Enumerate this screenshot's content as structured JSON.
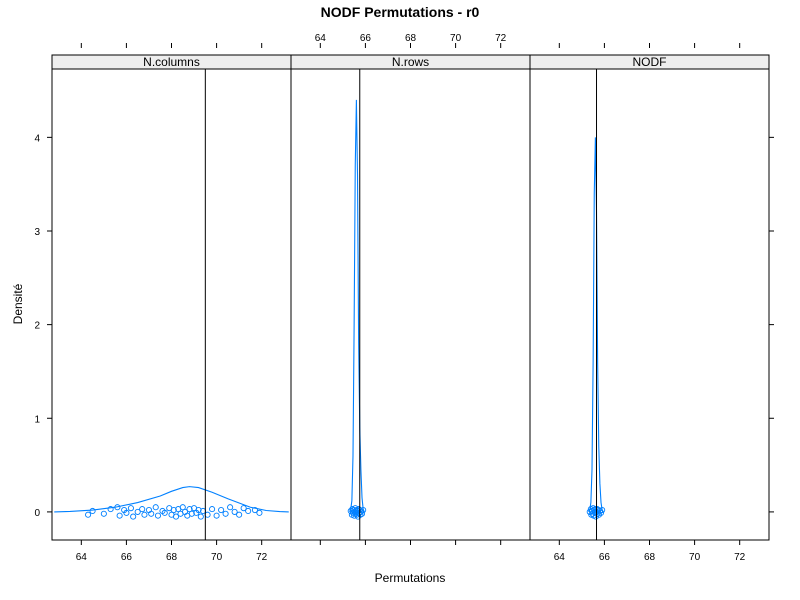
{
  "chart_data": {
    "type": "line",
    "title": "NODF Permutations - r0",
    "xlabel": "Permutations",
    "ylabel": "Densité",
    "xlim": [
      62.7,
      73.3
    ],
    "ylim": [
      -0.3,
      4.73
    ],
    "x_ticks": [
      64,
      66,
      68,
      70,
      72
    ],
    "y_ticks": [
      0,
      1,
      2,
      3,
      4
    ],
    "grid": false,
    "series_color": "#0080ff",
    "observed_line_color": "#000000",
    "strip_color": "#eeeeee",
    "panels": [
      {
        "name": "N.columns",
        "observed": 69.5,
        "density": {
          "x": [
            62.8,
            63.5,
            64.5,
            65.5,
            66.5,
            67.5,
            68.0,
            68.5,
            68.8,
            69.2,
            69.8,
            70.5,
            71.5,
            72.2,
            72.8,
            73.2
          ],
          "y": [
            0.0,
            0.005,
            0.02,
            0.05,
            0.1,
            0.17,
            0.22,
            0.26,
            0.27,
            0.26,
            0.21,
            0.14,
            0.05,
            0.015,
            0.004,
            0.0
          ]
        },
        "points": [
          {
            "x": 64.3,
            "y": -0.03
          },
          {
            "x": 64.5,
            "y": 0.01
          },
          {
            "x": 65.0,
            "y": -0.02
          },
          {
            "x": 65.3,
            "y": 0.03
          },
          {
            "x": 65.6,
            "y": 0.05
          },
          {
            "x": 65.7,
            "y": -0.04
          },
          {
            "x": 65.9,
            "y": 0.02
          },
          {
            "x": 66.0,
            "y": -0.01
          },
          {
            "x": 66.2,
            "y": 0.04
          },
          {
            "x": 66.3,
            "y": -0.05
          },
          {
            "x": 66.5,
            "y": 0.0
          },
          {
            "x": 66.7,
            "y": 0.03
          },
          {
            "x": 66.8,
            "y": -0.03
          },
          {
            "x": 67.0,
            "y": 0.02
          },
          {
            "x": 67.1,
            "y": -0.02
          },
          {
            "x": 67.3,
            "y": 0.05
          },
          {
            "x": 67.4,
            "y": -0.04
          },
          {
            "x": 67.6,
            "y": 0.01
          },
          {
            "x": 67.7,
            "y": -0.01
          },
          {
            "x": 67.9,
            "y": 0.04
          },
          {
            "x": 68.0,
            "y": -0.03
          },
          {
            "x": 68.1,
            "y": 0.02
          },
          {
            "x": 68.2,
            "y": -0.05
          },
          {
            "x": 68.3,
            "y": 0.03
          },
          {
            "x": 68.4,
            "y": -0.02
          },
          {
            "x": 68.5,
            "y": 0.05
          },
          {
            "x": 68.6,
            "y": 0.0
          },
          {
            "x": 68.7,
            "y": -0.04
          },
          {
            "x": 68.8,
            "y": 0.03
          },
          {
            "x": 68.9,
            "y": -0.02
          },
          {
            "x": 69.0,
            "y": 0.04
          },
          {
            "x": 69.1,
            "y": -0.01
          },
          {
            "x": 69.2,
            "y": 0.02
          },
          {
            "x": 69.3,
            "y": -0.05
          },
          {
            "x": 69.4,
            "y": 0.01
          },
          {
            "x": 69.6,
            "y": -0.03
          },
          {
            "x": 69.8,
            "y": 0.03
          },
          {
            "x": 70.0,
            "y": -0.04
          },
          {
            "x": 70.2,
            "y": 0.02
          },
          {
            "x": 70.4,
            "y": -0.02
          },
          {
            "x": 70.6,
            "y": 0.05
          },
          {
            "x": 70.8,
            "y": 0.0
          },
          {
            "x": 71.0,
            "y": -0.03
          },
          {
            "x": 71.2,
            "y": 0.04
          },
          {
            "x": 71.4,
            "y": 0.01
          },
          {
            "x": 71.7,
            "y": 0.02
          },
          {
            "x": 71.9,
            "y": -0.01
          }
        ]
      },
      {
        "name": "N.rows",
        "observed": 65.75,
        "density": {
          "x": [
            65.3,
            65.35,
            65.4,
            65.45,
            65.5,
            65.55,
            65.6,
            65.65,
            65.7,
            65.75,
            65.8,
            65.85,
            65.9,
            65.95
          ],
          "y": [
            0.0,
            0.03,
            0.12,
            0.6,
            2.0,
            3.7,
            4.4,
            3.6,
            1.8,
            0.9,
            0.45,
            0.15,
            0.03,
            0.0
          ]
        },
        "points": [
          {
            "x": 65.35,
            "y": 0.01
          },
          {
            "x": 65.4,
            "y": -0.03
          },
          {
            "x": 65.42,
            "y": 0.03
          },
          {
            "x": 65.45,
            "y": -0.01
          },
          {
            "x": 65.48,
            "y": 0.02
          },
          {
            "x": 65.5,
            "y": -0.04
          },
          {
            "x": 65.52,
            "y": 0.0
          },
          {
            "x": 65.55,
            "y": 0.04
          },
          {
            "x": 65.57,
            "y": -0.02
          },
          {
            "x": 65.6,
            "y": 0.02
          },
          {
            "x": 65.62,
            "y": -0.03
          },
          {
            "x": 65.65,
            "y": 0.01
          },
          {
            "x": 65.67,
            "y": -0.05
          },
          {
            "x": 65.7,
            "y": 0.03
          },
          {
            "x": 65.72,
            "y": -0.01
          },
          {
            "x": 65.75,
            "y": 0.02
          },
          {
            "x": 65.78,
            "y": -0.03
          },
          {
            "x": 65.8,
            "y": 0.0
          },
          {
            "x": 65.85,
            "y": -0.02
          },
          {
            "x": 65.9,
            "y": 0.02
          }
        ]
      },
      {
        "name": "NODF",
        "observed": 65.65,
        "density": {
          "x": [
            65.3,
            65.35,
            65.4,
            65.45,
            65.5,
            65.55,
            65.6,
            65.65,
            65.7,
            65.75,
            65.8,
            65.85,
            65.9,
            65.95
          ],
          "y": [
            0.0,
            0.02,
            0.1,
            0.45,
            1.6,
            3.4,
            4.0,
            3.2,
            1.6,
            0.7,
            0.3,
            0.1,
            0.02,
            0.0
          ]
        },
        "points": [
          {
            "x": 65.35,
            "y": 0.0
          },
          {
            "x": 65.4,
            "y": 0.03
          },
          {
            "x": 65.42,
            "y": -0.03
          },
          {
            "x": 65.45,
            "y": 0.01
          },
          {
            "x": 65.48,
            "y": -0.02
          },
          {
            "x": 65.5,
            "y": 0.04
          },
          {
            "x": 65.52,
            "y": -0.04
          },
          {
            "x": 65.55,
            "y": 0.02
          },
          {
            "x": 65.58,
            "y": -0.01
          },
          {
            "x": 65.6,
            "y": 0.03
          },
          {
            "x": 65.62,
            "y": -0.05
          },
          {
            "x": 65.65,
            "y": 0.0
          },
          {
            "x": 65.68,
            "y": 0.03
          },
          {
            "x": 65.7,
            "y": -0.02
          },
          {
            "x": 65.73,
            "y": 0.02
          },
          {
            "x": 65.76,
            "y": -0.03
          },
          {
            "x": 65.8,
            "y": 0.01
          },
          {
            "x": 65.85,
            "y": -0.01
          },
          {
            "x": 65.9,
            "y": 0.02
          }
        ]
      }
    ]
  }
}
